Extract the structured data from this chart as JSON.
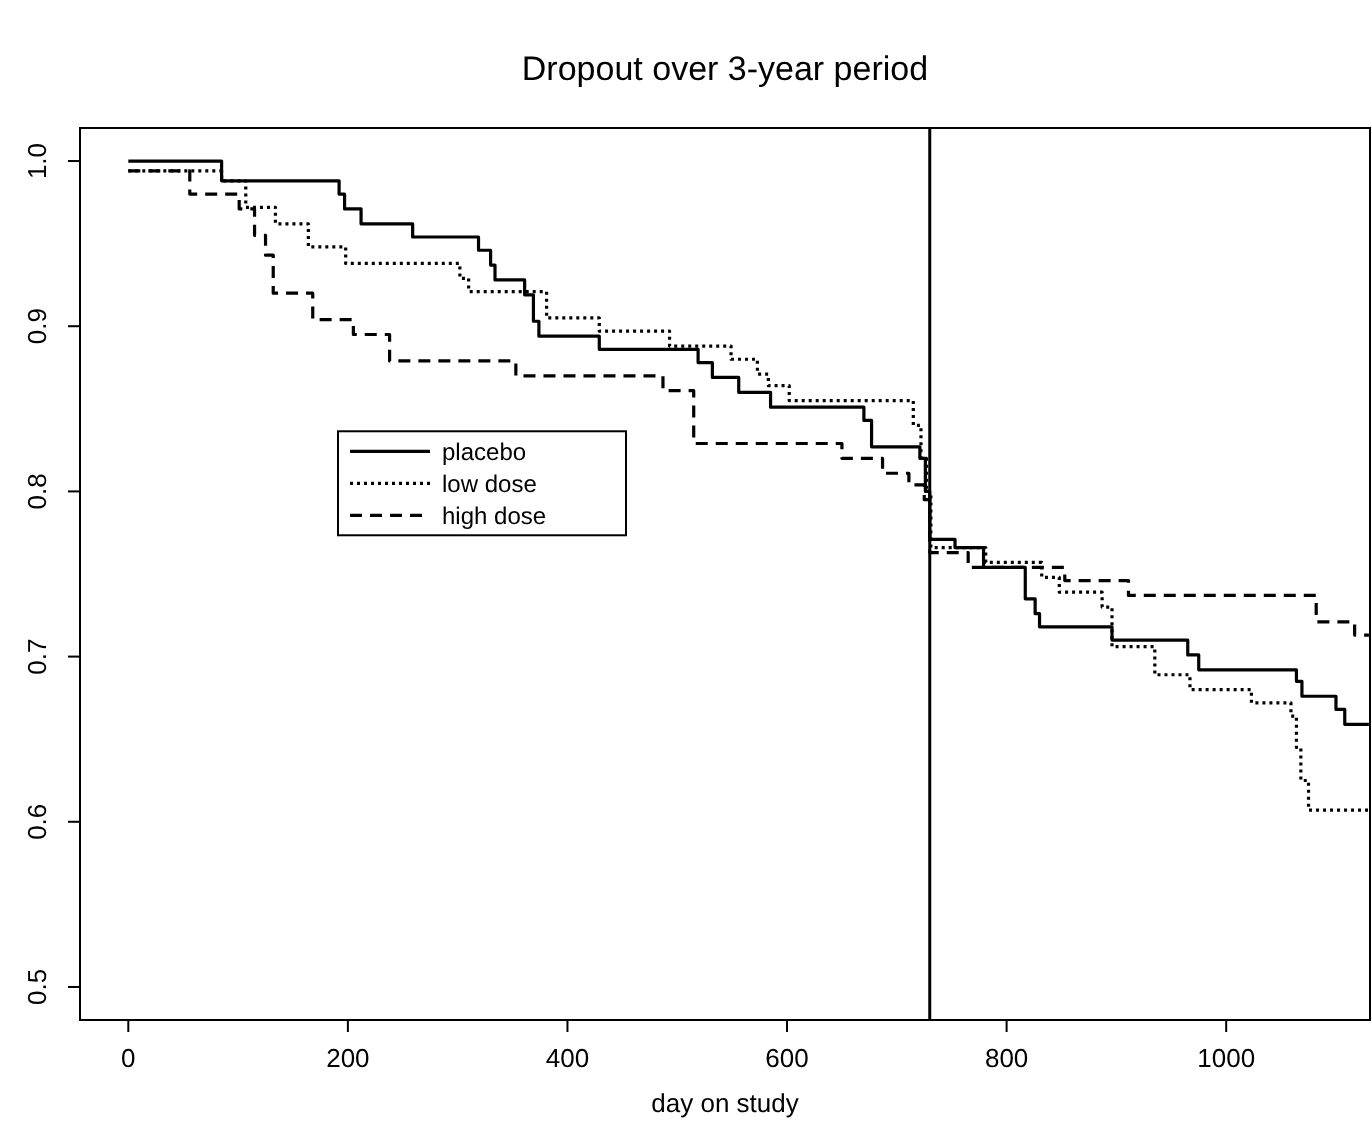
{
  "chart_data": {
    "type": "step",
    "title": "Dropout over 3-year period",
    "xlabel": "day on study",
    "xlim": [
      -44,
      1131
    ],
    "ylim": [
      0.48,
      1.02
    ],
    "xticks": [
      0,
      200,
      400,
      600,
      800,
      1000
    ],
    "yticks": [
      0.5,
      0.6,
      0.7,
      0.8,
      0.9,
      {
        "value": 1,
        "label": "1.0"
      }
    ],
    "legend": "left",
    "ref_lines": [
      {
        "axis": "x",
        "value": 730,
        "color": "#000000",
        "line_style": "solid"
      }
    ],
    "series": [
      {
        "name": "placebo",
        "color": "#000000",
        "line_style": "solid",
        "x": [
          0,
          85,
          192,
          197,
          212,
          259,
          319,
          330,
          334,
          361,
          369,
          374,
          429,
          519,
          532,
          556,
          585,
          670,
          677,
          721,
          726,
          730,
          753,
          779,
          817,
          826,
          830,
          896,
          965,
          975,
          1064,
          1069,
          1100,
          1108,
          1130
        ],
        "values": [
          1.0,
          0.988,
          0.98,
          0.971,
          0.962,
          0.954,
          0.946,
          0.937,
          0.928,
          0.919,
          0.903,
          0.894,
          0.886,
          0.878,
          0.869,
          0.86,
          0.851,
          0.843,
          0.827,
          0.82,
          0.8,
          0.771,
          0.766,
          0.754,
          0.735,
          0.726,
          0.718,
          0.71,
          0.701,
          0.692,
          0.685,
          0.676,
          0.668,
          0.659,
          0.659
        ]
      },
      {
        "name": "low dose",
        "color": "#000000",
        "line_style": "dotted",
        "x": [
          0,
          85,
          107,
          134,
          164,
          198,
          302,
          310,
          381,
          429,
          493,
          549,
          573,
          583,
          602,
          715,
          722,
          727,
          731,
          781,
          832,
          848,
          887,
          896,
          935,
          967,
          1023,
          1059,
          1064,
          1068,
          1075,
          1130
        ],
        "values": [
          0.994,
          0.988,
          0.972,
          0.962,
          0.948,
          0.938,
          0.929,
          0.921,
          0.905,
          0.897,
          0.888,
          0.88,
          0.871,
          0.864,
          0.855,
          0.84,
          0.82,
          0.8,
          0.766,
          0.757,
          0.748,
          0.739,
          0.73,
          0.706,
          0.689,
          0.68,
          0.672,
          0.664,
          0.645,
          0.625,
          0.607,
          0.607
        ]
      },
      {
        "name": "high dose",
        "color": "#000000",
        "line_style": "dashed",
        "x": [
          0,
          56,
          101,
          115,
          125,
          132,
          168,
          205,
          238,
          353,
          487,
          515,
          650,
          687,
          711,
          725,
          730,
          765,
          853,
          911,
          1082,
          1117,
          1130
        ],
        "values": [
          0.994,
          0.98,
          0.971,
          0.955,
          0.943,
          0.92,
          0.904,
          0.895,
          0.879,
          0.87,
          0.861,
          0.829,
          0.82,
          0.811,
          0.804,
          0.795,
          0.763,
          0.754,
          0.746,
          0.737,
          0.721,
          0.713,
          0.713
        ]
      }
    ]
  }
}
